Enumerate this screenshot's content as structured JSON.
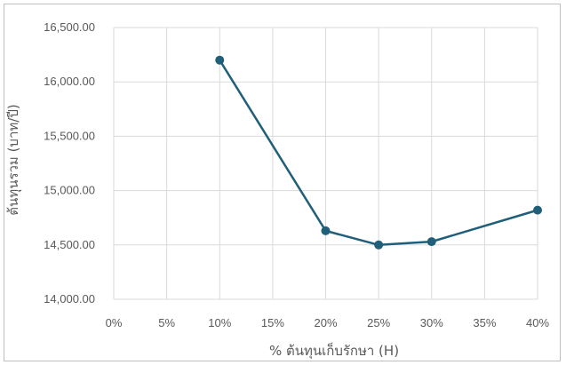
{
  "chart_data": {
    "type": "line",
    "title": "",
    "xlabel": "% ต้นทุนเก็บรักษา (H)",
    "ylabel": "ต้นทุนรวม (บาท/ปี)",
    "x_ticks": [
      "0%",
      "5%",
      "10%",
      "15%",
      "20%",
      "25%",
      "30%",
      "35%",
      "40%"
    ],
    "y_ticks": [
      "14,000.00",
      "14,500.00",
      "15,000.00",
      "15,500.00",
      "16,000.00",
      "16,500.00"
    ],
    "xlim": [
      0,
      40
    ],
    "ylim": [
      14000,
      16500
    ],
    "grid": true,
    "series": [
      {
        "color": "#1f5f7a",
        "points": [
          {
            "x": 10,
            "y": 16200
          },
          {
            "x": 20,
            "y": 14630
          },
          {
            "x": 25,
            "y": 14500
          },
          {
            "x": 30,
            "y": 14530
          },
          {
            "x": 40,
            "y": 14820
          }
        ]
      }
    ]
  }
}
